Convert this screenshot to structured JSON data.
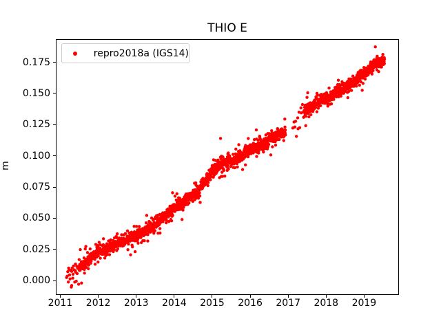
{
  "figure": {
    "background": "#ffffff",
    "frame_color": "#000000",
    "text_color": "#000000"
  },
  "chart_data": {
    "type": "scatter",
    "title": "THIO E",
    "xlabel": "",
    "ylabel": "m",
    "grid": false,
    "xlim": [
      2010.9,
      2019.9
    ],
    "ylim": [
      -0.011,
      0.193
    ],
    "xticks": {
      "values": [
        2011,
        2012,
        2013,
        2014,
        2015,
        2016,
        2017,
        2018,
        2019
      ],
      "labels": [
        "2011",
        "2012",
        "2013",
        "2014",
        "2015",
        "2016",
        "2017",
        "2018",
        "2019"
      ]
    },
    "yticks": {
      "values": [
        0.0,
        0.025,
        0.05,
        0.075,
        0.1,
        0.125,
        0.15,
        0.175
      ],
      "labels": [
        "0.000",
        "0.025",
        "0.050",
        "0.075",
        "0.100",
        "0.125",
        "0.150",
        "0.175"
      ]
    },
    "legend": {
      "location": "upper-left",
      "border_color": "#cccccc",
      "entries": [
        {
          "label": "repro2018a (IGS14)",
          "color": "#ff0000",
          "marker": "circle"
        }
      ]
    },
    "series": [
      {
        "name": "repro2018a (IGS14)",
        "color": "#ff0000",
        "marker_radius_px": 2.2,
        "seed": 7,
        "trend_anchors": [
          [
            2011.17,
            0.003
          ],
          [
            2011.35,
            0.006
          ],
          [
            2011.55,
            0.012
          ],
          [
            2011.75,
            0.017
          ],
          [
            2012.0,
            0.023
          ],
          [
            2012.3,
            0.0265
          ],
          [
            2012.6,
            0.031
          ],
          [
            2013.0,
            0.036
          ],
          [
            2013.4,
            0.0435
          ],
          [
            2013.8,
            0.053
          ],
          [
            2014.0,
            0.058
          ],
          [
            2014.3,
            0.0645
          ],
          [
            2014.55,
            0.07
          ],
          [
            2014.8,
            0.079
          ],
          [
            2015.05,
            0.0895
          ],
          [
            2015.3,
            0.094
          ],
          [
            2015.6,
            0.0965
          ],
          [
            2016.0,
            0.105
          ],
          [
            2016.35,
            0.11
          ],
          [
            2016.6,
            0.1155
          ],
          [
            2016.93,
            0.1195
          ],
          [
            2017.12,
            0.1265
          ],
          [
            2017.4,
            0.134
          ],
          [
            2017.55,
            0.138
          ],
          [
            2018.0,
            0.1465
          ],
          [
            2018.35,
            0.152
          ],
          [
            2018.7,
            0.158
          ],
          [
            2019.0,
            0.166
          ],
          [
            2019.2,
            0.171
          ],
          [
            2019.35,
            0.1755
          ],
          [
            2019.54,
            0.176
          ]
        ],
        "segments": [
          {
            "start": 2011.17,
            "end": 2011.5,
            "step_years": 0.013,
            "noise_sd": 0.004
          },
          {
            "start": 2011.5,
            "end": 2016.93,
            "step_years": 0.0035,
            "noise_sd": 0.0023
          },
          {
            "start": 2017.12,
            "end": 2017.42,
            "step_years": 0.021,
            "noise_sd": 0.0048
          },
          {
            "start": 2017.42,
            "end": 2019.54,
            "step_years": 0.0035,
            "noise_sd": 0.0023
          }
        ],
        "noise_mixture": {
          "p_wide": 0.1,
          "wide_factor": 2.2,
          "p_far": 0.02,
          "far_factor": 4.0,
          "clamp": 0.0135
        },
        "outliers": [
          [
            2011.3,
            -0.004
          ],
          [
            2011.56,
            -0.002
          ],
          [
            2011.4,
            0.0132
          ],
          [
            2012.5,
            0.0375
          ],
          [
            2012.9,
            0.027
          ],
          [
            2013.05,
            0.03
          ],
          [
            2014.95,
            0.083
          ],
          [
            2015.22,
            0.114
          ],
          [
            2015.24,
            0.0835
          ],
          [
            2015.27,
            0.0835
          ],
          [
            2015.8,
            0.089
          ],
          [
            2016.17,
            0.0995
          ],
          [
            2018.14,
            0.1417
          ]
        ]
      }
    ]
  }
}
